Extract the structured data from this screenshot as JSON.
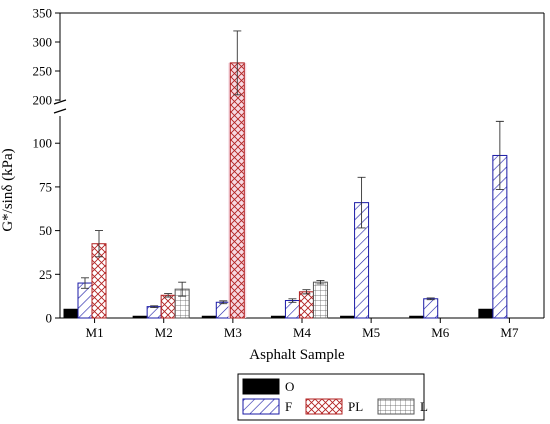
{
  "chart_data": {
    "type": "bar",
    "xlabel": "Asphalt Sample",
    "ylabel": "G*/sinδ (kPa)",
    "categories": [
      "M1",
      "M2",
      "M3",
      "M4",
      "M5",
      "M6",
      "M7"
    ],
    "y_axis_broken": true,
    "y_lower_range": [
      0,
      115
    ],
    "y_upper_range": [
      200,
      350
    ],
    "y_ticks_lower": [
      "0",
      "25",
      "50",
      "75",
      "100"
    ],
    "y_ticks_upper": [
      "200",
      "250",
      "300",
      "350"
    ],
    "legend": [
      "O",
      "F",
      "PL",
      "L"
    ],
    "series": [
      {
        "name": "O",
        "color": "#000000",
        "pattern": "solid",
        "values": [
          5,
          1,
          1,
          1,
          1,
          1,
          5
        ],
        "errors": [
          0,
          0,
          0,
          0,
          0,
          0,
          0
        ]
      },
      {
        "name": "F",
        "color": "#1a1aa6",
        "pattern": "diagonal",
        "values": [
          20,
          6.5,
          9,
          10,
          66,
          11,
          93
        ],
        "errors": [
          3,
          0.5,
          0.8,
          1,
          14.5,
          0.5,
          19.5
        ]
      },
      {
        "name": "PL",
        "color": "#b22222",
        "pattern": "crosshatch",
        "values": [
          42.5,
          13,
          264,
          15,
          null,
          null,
          null
        ],
        "errors": [
          7.5,
          1,
          55,
          1.2,
          null,
          null,
          null
        ]
      },
      {
        "name": "L",
        "color": "#666666",
        "pattern": "grid",
        "values": [
          null,
          16.5,
          null,
          20.5,
          null,
          null,
          null
        ],
        "errors": [
          null,
          4,
          null,
          1,
          null,
          null,
          null
        ]
      }
    ]
  }
}
